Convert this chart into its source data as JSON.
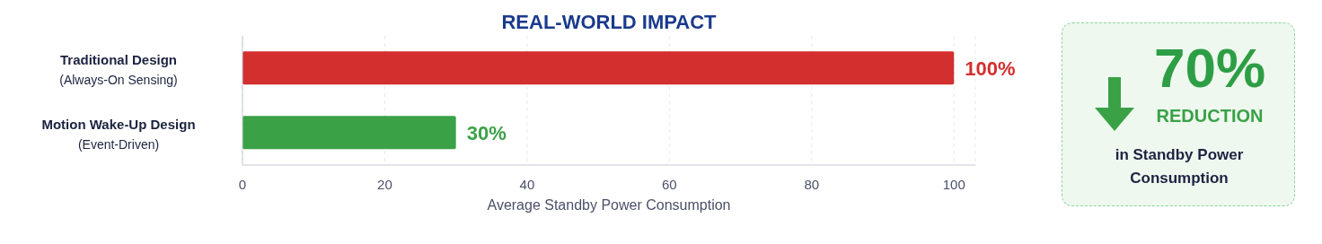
{
  "chart_data": [
    {
      "type": "bar",
      "orientation": "horizontal",
      "title": "REAL-WORLD IMPACT",
      "xlabel": "Average Standby Power Consumption",
      "categories": [
        "Traditional Design\n(Always-On Sensing)",
        "Motion Wake-Up Design\n(Event-Driven)"
      ],
      "values": [
        100,
        30
      ],
      "colors": [
        "#d32f2f",
        "#3aa147"
      ],
      "value_labels": [
        "100%",
        "30%"
      ],
      "xlim": [
        0,
        103
      ],
      "xticks": [
        0,
        20,
        40,
        60,
        80,
        100
      ],
      "grid": "x"
    },
    {
      "type": "other",
      "annotations": [
        "70%",
        "REDUCTION",
        "in Standby Power Consumption"
      ]
    }
  ]
}
